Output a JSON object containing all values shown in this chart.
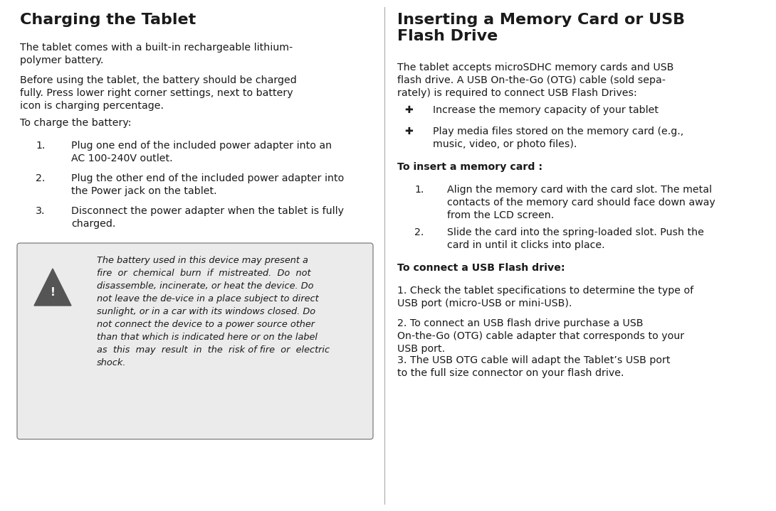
{
  "bg_color": "#ffffff",
  "text_color": "#1a1a1a",
  "divider_color": "#aaaaaa",
  "warn_bg": "#ebebeb",
  "warn_border": "#888888",
  "title_fs": 16,
  "body_fs": 10.2,
  "warn_fs": 9.3,
  "sub_fs": 10.2,
  "left_title": "Charging the Tablet",
  "left_para1": "The tablet comes with a built-in rechargeable lithium-\npolymer battery.",
  "left_para2": "Before using the tablet, the battery should be charged\nfully. Press lower right corner settings, next to battery\nicon is charging percentage.",
  "left_para3": "To charge the battery:",
  "left_num1_n": "1.",
  "left_num1_t": "Plug one end of the included power adapter into an\nAC 100-240V outlet.",
  "left_num2_n": "2.",
  "left_num2_t": "Plug the other end of the included power adapter into\nthe Power jack on the tablet.",
  "left_num3_n": "3.",
  "left_num3_t": "Disconnect the power adapter when the tablet is fully\ncharged.",
  "warn_line1": "The battery used in this device may present a",
  "warn_line2": "fire  or  chemical  burn  if  mistreated.  Do  not",
  "warn_line3": "disassemble, incinerate, or heat the device. Do",
  "warn_line4": "not leave the de-vice in a place subject to direct",
  "warn_line5": "sunlight, or in a car with its windows closed. Do",
  "warn_line6": "not connect the device to a power source other",
  "warn_line7": "than that which is indicated here or on the label",
  "warn_line8": "as  this  may  result  in  the  risk of fire  or  electric",
  "warn_line9": "shock.",
  "right_title": "Inserting a Memory Card or USB\nFlash Drive",
  "right_para1": "The tablet accepts microSDHC memory cards and USB\nflash drive. A USB On-the-Go (OTG) cable (sold sepa-\nrately) is required to connect USB Flash Drives:",
  "bullet_sym": "✔",
  "right_b1": "Increase the memory capacity of your tablet",
  "right_b2": "Play media files stored on the memory card (e.g.,\nmusic, video, or photo files).",
  "right_sub1": "To insert a memory card :",
  "right_n1_n": "1.",
  "right_n1_t": "Align the memory card with the card slot. The metal\ncontacts of the memory card should face down away\nfrom the LCD screen.",
  "right_n2_n": "2.",
  "right_n2_t": "Slide the card into the spring-loaded slot. Push the\ncard in until it clicks into place.",
  "right_sub2": "To connect a USB Flash drive:",
  "right_usb1": "1. Check the tablet specifications to determine the type of\nUSB port (micro-USB or mini-USB).",
  "right_usb2": "2. To connect an USB flash drive purchase a USB\nOn-the-Go (OTG) cable adapter that corresponds to your\nUSB port.",
  "right_usb3": "3. The USB OTG cable will adapt the Tablet’s USB port\nto the full size connector on your flash drive."
}
